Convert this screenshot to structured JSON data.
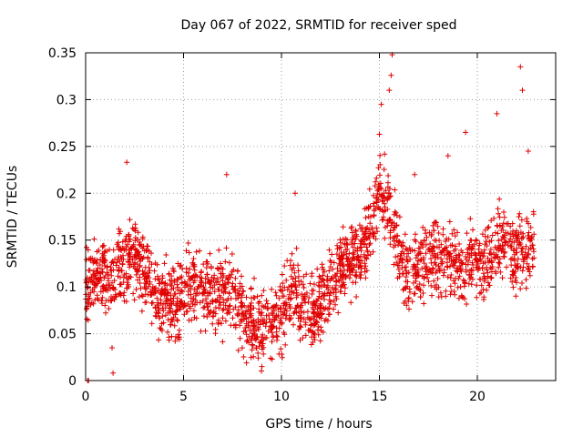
{
  "chart_data": {
    "type": "scatter",
    "title": "Day 067 of 2022, SRMTID for receiver sped",
    "xlabel": "GPS time / hours",
    "ylabel": "SRMTID / TECUs",
    "xlim": [
      0,
      24
    ],
    "ylim": [
      0,
      0.35
    ],
    "xticks": [
      0,
      5,
      10,
      15,
      20
    ],
    "xtick_labels": [
      "0",
      "5",
      "10",
      "15",
      "20"
    ],
    "yticks": [
      0,
      0.05,
      0.1,
      0.15,
      0.2,
      0.25,
      0.3,
      0.35
    ],
    "ytick_labels": [
      "0",
      "0.05",
      "0.1",
      "0.15",
      "0.2",
      "0.25",
      "0.3",
      "0.35"
    ],
    "grid": true,
    "marker": "+",
    "series": [
      {
        "name": "SRMTID",
        "color": "#e00000",
        "trend": [
          [
            0.0,
            0.09
          ],
          [
            0.5,
            0.12
          ],
          [
            1.0,
            0.11
          ],
          [
            1.5,
            0.12
          ],
          [
            2.0,
            0.13
          ],
          [
            2.5,
            0.13
          ],
          [
            3.0,
            0.12
          ],
          [
            3.5,
            0.09
          ],
          [
            4.0,
            0.09
          ],
          [
            4.5,
            0.08
          ],
          [
            5.0,
            0.09
          ],
          [
            5.5,
            0.1
          ],
          [
            6.0,
            0.1
          ],
          [
            6.5,
            0.1
          ],
          [
            7.0,
            0.09
          ],
          [
            7.5,
            0.1
          ],
          [
            8.0,
            0.07
          ],
          [
            8.5,
            0.06
          ],
          [
            9.0,
            0.055
          ],
          [
            9.5,
            0.06
          ],
          [
            10.0,
            0.07
          ],
          [
            10.5,
            0.1
          ],
          [
            11.0,
            0.08
          ],
          [
            11.5,
            0.07
          ],
          [
            12.0,
            0.08
          ],
          [
            12.5,
            0.1
          ],
          [
            13.0,
            0.12
          ],
          [
            13.5,
            0.13
          ],
          [
            14.0,
            0.13
          ],
          [
            14.5,
            0.16
          ],
          [
            15.0,
            0.2
          ],
          [
            15.5,
            0.19
          ],
          [
            16.0,
            0.13
          ],
          [
            16.5,
            0.11
          ],
          [
            17.0,
            0.12
          ],
          [
            17.5,
            0.13
          ],
          [
            18.0,
            0.13
          ],
          [
            18.5,
            0.13
          ],
          [
            19.0,
            0.12
          ],
          [
            19.5,
            0.12
          ],
          [
            20.0,
            0.13
          ],
          [
            20.5,
            0.12
          ],
          [
            21.0,
            0.14
          ],
          [
            21.5,
            0.15
          ],
          [
            22.0,
            0.13
          ],
          [
            22.5,
            0.14
          ],
          [
            22.9,
            0.15
          ]
        ],
        "spread": 0.035,
        "n_points": 2200,
        "sample_points": [
          [
            15.0,
            0.263
          ],
          [
            15.1,
            0.295
          ],
          [
            15.5,
            0.31
          ],
          [
            15.6,
            0.326
          ],
          [
            15.65,
            0.348
          ],
          [
            22.2,
            0.335
          ],
          [
            22.3,
            0.31
          ],
          [
            21.0,
            0.285
          ],
          [
            7.2,
            0.22
          ],
          [
            2.1,
            0.233
          ],
          [
            10.7,
            0.2
          ],
          [
            1.4,
            0.008
          ],
          [
            1.35,
            0.035
          ],
          [
            0.1,
            0.0
          ],
          [
            0.15,
            0.0
          ],
          [
            9.0,
            0.015
          ],
          [
            19.4,
            0.265
          ],
          [
            22.6,
            0.245
          ],
          [
            16.8,
            0.22
          ],
          [
            18.5,
            0.24
          ]
        ]
      }
    ]
  }
}
